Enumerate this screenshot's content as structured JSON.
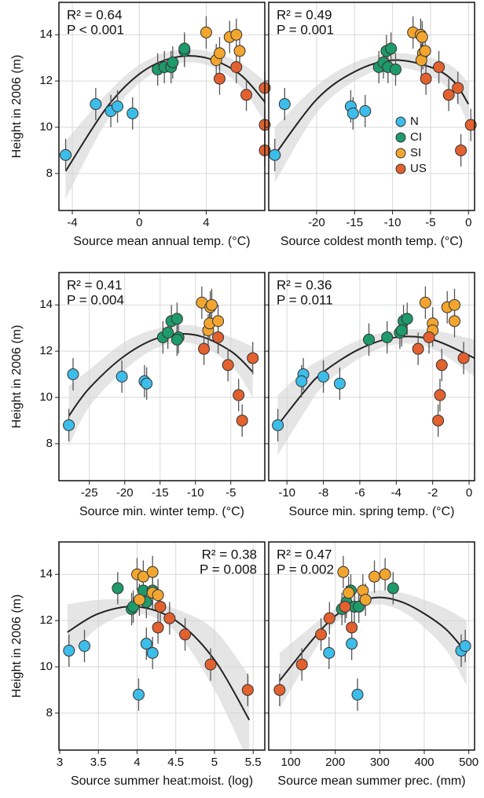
{
  "chart_data": [
    {
      "type": "scatter",
      "ylabel": "Height in 2006 (m)",
      "xlabel": "Source mean annual temp. (°C)",
      "annotations": [
        "R² = 0.64",
        "P < 0.001"
      ],
      "annotation_corner": "top-left",
      "xlim": [
        -4.8,
        7.5
      ],
      "xticks": [
        -4,
        0,
        4
      ],
      "ylim": [
        6.4,
        15.4
      ],
      "yticks": [
        8,
        10,
        12,
        14
      ],
      "show_ytick_labels": true,
      "grid": true,
      "series": [
        {
          "color": "#3dbde9",
          "x": [
            -4.4,
            -2.6,
            -1.7,
            -1.3,
            -0.4
          ],
          "values": [
            8.8,
            11.0,
            10.7,
            10.9,
            10.6
          ],
          "errors": [
            0.7,
            0.7,
            0.7,
            0.7,
            0.7
          ]
        },
        {
          "color": "#1e9a6b",
          "x": [
            1.1,
            1.5,
            1.9,
            2.0,
            2.7,
            2.7
          ],
          "values": [
            12.5,
            12.6,
            12.6,
            12.8,
            13.3,
            13.4
          ],
          "errors": [
            0.7,
            0.7,
            0.7,
            0.7,
            0.7,
            0.7
          ]
        },
        {
          "color": "#f2a62f",
          "x": [
            4.0,
            4.6,
            4.8,
            5.4,
            5.8,
            6.0
          ],
          "values": [
            14.1,
            12.9,
            13.2,
            13.9,
            14.0,
            13.3
          ],
          "errors": [
            0.7,
            0.7,
            0.7,
            0.7,
            0.7,
            0.7
          ]
        },
        {
          "color": "#e2612f",
          "x": [
            4.8,
            5.8,
            6.4,
            7.5,
            7.5,
            7.5
          ],
          "values": [
            12.1,
            12.6,
            11.4,
            11.7,
            10.1,
            9.0
          ],
          "errors": [
            0.7,
            0.7,
            0.7,
            0.7,
            0.7,
            0.7
          ]
        }
      ],
      "fit": {
        "x": [
          -4.4,
          -2,
          0,
          2,
          4,
          6,
          7.5
        ],
        "y": [
          8.1,
          10.8,
          12.3,
          13.0,
          13.0,
          12.3,
          11.1
        ],
        "lower": [
          6.9,
          10.2,
          11.9,
          12.7,
          12.7,
          11.8,
          10.2
        ],
        "upper": [
          9.4,
          11.4,
          12.7,
          13.3,
          13.3,
          12.8,
          12.0
        ]
      }
    },
    {
      "type": "scatter",
      "xlabel": "Source coldest month temp. (°C)",
      "annotations": [
        "R² = 0.49",
        "P = 0.001"
      ],
      "annotation_corner": "top-left",
      "xlim": [
        -26.3,
        0.8
      ],
      "xticks": [
        -20,
        -15,
        -10,
        -5,
        0
      ],
      "ylim": [
        6.4,
        15.4
      ],
      "yticks": [
        8,
        10,
        12,
        14
      ],
      "show_ytick_labels": false,
      "grid": true,
      "legend": "center-right",
      "series": [
        {
          "name": "N",
          "color": "#3dbde9",
          "x": [
            -25.5,
            -24.2,
            -15.5,
            -15.2,
            -13.6
          ],
          "values": [
            8.8,
            11.0,
            10.9,
            10.6,
            10.7
          ],
          "errors": [
            0.7,
            0.7,
            0.7,
            0.7,
            0.7
          ]
        },
        {
          "name": "CI",
          "color": "#1e9a6b",
          "x": [
            -11.8,
            -11.2,
            -10.8,
            -10.2,
            -10.6,
            -9.6
          ],
          "values": [
            12.6,
            12.8,
            13.3,
            13.4,
            12.6,
            12.5
          ],
          "errors": [
            0.7,
            0.7,
            0.7,
            0.7,
            0.7,
            0.7
          ]
        },
        {
          "name": "SI",
          "color": "#f2a62f",
          "x": [
            -7.3,
            -6.3,
            -6.1,
            -6.0,
            -6.2,
            -5.7
          ],
          "values": [
            14.1,
            14.0,
            13.9,
            13.2,
            12.9,
            13.3
          ],
          "errors": [
            0.7,
            0.7,
            0.7,
            0.7,
            0.7,
            0.7
          ]
        },
        {
          "name": "US",
          "color": "#e2612f",
          "x": [
            -5.6,
            -3.9,
            -2.6,
            -1.4,
            -1.0,
            0.3
          ],
          "values": [
            12.1,
            12.6,
            11.4,
            11.7,
            9.0,
            10.1
          ],
          "errors": [
            0.7,
            0.7,
            0.7,
            0.7,
            0.7,
            0.7
          ]
        }
      ],
      "fit": {
        "x": [
          -25.5,
          -20,
          -15,
          -10,
          -5,
          -2,
          0
        ],
        "y": [
          8.8,
          11.2,
          12.4,
          12.9,
          12.6,
          12.0,
          11.0
        ],
        "lower": [
          7.6,
          10.6,
          12.0,
          12.6,
          12.2,
          11.4,
          10.1
        ],
        "upper": [
          10.0,
          11.8,
          12.8,
          13.2,
          13.0,
          12.6,
          11.9
        ]
      }
    },
    {
      "type": "scatter",
      "ylabel": "Height in 2006 (m)",
      "xlabel": "Source min. winter temp. (°C)",
      "annotations": [
        "R² = 0.41",
        "P = 0.004"
      ],
      "annotation_corner": "top-left",
      "xlim": [
        -29.3,
        -0.2
      ],
      "xticks": [
        -25,
        -20,
        -15,
        -10,
        -5
      ],
      "ylim": [
        6.4,
        15.4
      ],
      "yticks": [
        8,
        10,
        12,
        14
      ],
      "show_ytick_labels": true,
      "grid": true,
      "series": [
        {
          "color": "#3dbde9",
          "x": [
            -27.9,
            -27.3,
            -20.4,
            -17.2,
            -16.9
          ],
          "values": [
            8.8,
            11.0,
            10.9,
            10.7,
            10.6
          ],
          "errors": [
            0.7,
            0.7,
            0.7,
            0.7,
            0.7
          ]
        },
        {
          "color": "#1e9a6b",
          "x": [
            -14.6,
            -13.9,
            -13.4,
            -12.6,
            -12.4,
            -12.6
          ],
          "values": [
            12.6,
            12.8,
            13.3,
            13.4,
            12.6,
            12.5
          ],
          "errors": [
            0.7,
            0.7,
            0.7,
            0.7,
            0.7,
            0.7
          ]
        },
        {
          "color": "#f2a62f",
          "x": [
            -9.1,
            -7.9,
            -7.7,
            -8.2,
            -8.0,
            -6.8
          ],
          "values": [
            14.1,
            13.9,
            14.0,
            12.9,
            13.2,
            13.3
          ],
          "errors": [
            0.7,
            0.7,
            0.7,
            0.7,
            0.7,
            0.7
          ]
        },
        {
          "color": "#e2612f",
          "x": [
            -8.8,
            -6.8,
            -5.4,
            -3.9,
            -3.4,
            -1.9
          ],
          "values": [
            12.1,
            12.6,
            11.4,
            10.1,
            9.0,
            11.7
          ],
          "errors": [
            0.7,
            0.7,
            0.7,
            0.7,
            0.7,
            0.7
          ]
        }
      ],
      "fit": {
        "x": [
          -27.9,
          -25,
          -20,
          -15,
          -10,
          -5,
          -1.9
        ],
        "y": [
          9.2,
          10.4,
          11.8,
          12.6,
          12.7,
          12.0,
          11.1
        ],
        "lower": [
          7.9,
          9.6,
          11.2,
          12.2,
          12.3,
          11.4,
          10.0
        ],
        "upper": [
          10.5,
          11.2,
          12.4,
          13.0,
          13.1,
          12.6,
          12.2
        ]
      }
    },
    {
      "type": "scatter",
      "xlabel": "Source min. spring temp. (°C)",
      "annotations": [
        "R² = 0.36",
        "P = 0.011"
      ],
      "annotation_corner": "top-left",
      "xlim": [
        -11.0,
        0.3
      ],
      "xticks": [
        -10,
        -8,
        -6,
        -4,
        -2,
        0
      ],
      "ylim": [
        6.4,
        15.4
      ],
      "yticks": [
        8,
        10,
        12,
        14
      ],
      "show_ytick_labels": false,
      "grid": true,
      "series": [
        {
          "color": "#3dbde9",
          "x": [
            -10.5,
            -9.1,
            -9.2,
            -8.0,
            -7.1
          ],
          "values": [
            8.8,
            11.0,
            10.7,
            10.9,
            10.6
          ],
          "errors": [
            0.7,
            0.7,
            0.7,
            0.7,
            0.7
          ]
        },
        {
          "color": "#1e9a6b",
          "x": [
            -5.5,
            -4.5,
            -3.8,
            -3.6,
            -3.4,
            -3.7
          ],
          "values": [
            12.5,
            12.6,
            12.8,
            13.3,
            13.4,
            12.9
          ],
          "errors": [
            0.7,
            0.7,
            0.7,
            0.7,
            0.7,
            0.7
          ]
        },
        {
          "color": "#f2a62f",
          "x": [
            -2.4,
            -2.0,
            -2.0,
            -1.2,
            -0.8,
            -0.8
          ],
          "values": [
            14.1,
            13.2,
            12.9,
            13.9,
            14.0,
            13.3
          ],
          "errors": [
            0.7,
            0.7,
            0.7,
            0.7,
            0.7,
            0.7
          ]
        },
        {
          "color": "#e2612f",
          "x": [
            -2.8,
            -2.2,
            -1.5,
            -1.6,
            -1.7,
            -0.3
          ],
          "values": [
            12.1,
            12.6,
            11.4,
            10.1,
            9.0,
            11.7
          ],
          "errors": [
            0.7,
            0.7,
            0.7,
            0.7,
            0.7,
            0.7
          ]
        }
      ],
      "fit": {
        "x": [
          -10.5,
          -9,
          -8,
          -6,
          -4,
          -2,
          0.3
        ],
        "y": [
          8.8,
          10.3,
          11.1,
          12.1,
          12.6,
          12.5,
          11.7
        ],
        "lower": [
          7.5,
          9.4,
          10.5,
          11.7,
          12.3,
          12.1,
          10.9
        ],
        "upper": [
          10.1,
          11.2,
          11.7,
          12.5,
          12.9,
          12.9,
          12.5
        ]
      }
    },
    {
      "type": "scatter",
      "ylabel": "Height in 2006 (m)",
      "xlabel": "Source summer heat:moist. (log)",
      "annotations": [
        "R² = 0.38",
        "P = 0.008"
      ],
      "annotation_corner": "top-right",
      "xlim": [
        2.99,
        5.65
      ],
      "xticks": [
        3,
        3.5,
        4,
        4.5,
        5,
        5.5
      ],
      "ylim": [
        6.4,
        15.4
      ],
      "yticks": [
        8,
        10,
        12,
        14
      ],
      "show_ytick_labels": true,
      "grid": true,
      "series": [
        {
          "color": "#3dbde9",
          "x": [
            3.12,
            3.32,
            4.02,
            4.12,
            4.2
          ],
          "values": [
            10.7,
            10.9,
            8.8,
            11.0,
            10.6
          ],
          "errors": [
            0.7,
            0.7,
            0.7,
            0.7,
            0.7
          ]
        },
        {
          "color": "#1e9a6b",
          "x": [
            3.75,
            3.93,
            3.95,
            4.08,
            4.12,
            4.2
          ],
          "values": [
            13.4,
            12.5,
            12.6,
            13.3,
            12.8,
            13.3
          ],
          "errors": [
            0.7,
            0.7,
            0.7,
            0.7,
            0.7,
            0.7
          ]
        },
        {
          "color": "#f2a62f",
          "x": [
            4.0,
            4.08,
            4.2,
            4.2,
            4.27,
            4.03
          ],
          "values": [
            14.0,
            13.9,
            14.1,
            13.2,
            13.1,
            12.9
          ],
          "errors": [
            0.7,
            0.7,
            0.7,
            0.7,
            0.7,
            0.7
          ]
        },
        {
          "color": "#e2612f",
          "x": [
            4.27,
            4.3,
            4.42,
            4.62,
            4.95,
            5.43
          ],
          "values": [
            11.7,
            12.6,
            12.1,
            11.4,
            10.1,
            9.0
          ],
          "errors": [
            0.7,
            0.7,
            0.7,
            0.7,
            0.7,
            0.7
          ]
        }
      ],
      "fit": {
        "x": [
          3.1,
          3.5,
          4,
          4.5,
          5,
          5.45
        ],
        "y": [
          11.5,
          12.3,
          12.6,
          12.0,
          10.3,
          7.7
        ],
        "lower": [
          10.3,
          11.7,
          12.3,
          11.5,
          9.0,
          5.8
        ],
        "upper": [
          12.7,
          12.9,
          12.9,
          12.5,
          11.6,
          9.6
        ]
      }
    },
    {
      "type": "scatter",
      "xlabel": "Source mean summer prec. (mm)",
      "annotations": [
        "R² = 0.47",
        "P = 0.002"
      ],
      "annotation_corner": "top-left",
      "xlim": [
        50.5,
        513
      ],
      "xticks": [
        100,
        200,
        300,
        400,
        500
      ],
      "ylim": [
        6.4,
        15.4
      ],
      "yticks": [
        8,
        10,
        12,
        14
      ],
      "show_ytick_labels": false,
      "grid": true,
      "series": [
        {
          "color": "#3dbde9",
          "x": [
            186,
            237,
            250,
            483,
            492
          ],
          "values": [
            10.6,
            11.0,
            8.8,
            10.7,
            10.9
          ],
          "errors": [
            0.7,
            0.7,
            0.7,
            0.7,
            0.7
          ]
        },
        {
          "color": "#1e9a6b",
          "x": [
            215,
            225,
            235,
            243,
            253,
            330
          ],
          "values": [
            12.5,
            12.8,
            13.3,
            12.6,
            12.6,
            13.4
          ],
          "errors": [
            0.7,
            0.7,
            0.7,
            0.7,
            0.7,
            0.7
          ]
        },
        {
          "color": "#f2a62f",
          "x": [
            218,
            230,
            262,
            268,
            288,
            312
          ],
          "values": [
            14.1,
            13.2,
            13.3,
            12.9,
            13.9,
            14.0
          ],
          "errors": [
            0.7,
            0.7,
            0.7,
            0.7,
            0.7,
            0.7
          ]
        },
        {
          "color": "#e2612f",
          "x": [
            75,
            125,
            168,
            187,
            222,
            237
          ],
          "values": [
            9.0,
            10.1,
            11.4,
            12.1,
            12.6,
            11.7
          ],
          "errors": [
            0.7,
            0.7,
            0.7,
            0.7,
            0.7,
            0.7
          ]
        }
      ],
      "fit": {
        "x": [
          75,
          150,
          200,
          250,
          300,
          350,
          400,
          450,
          495
        ],
        "y": [
          9.4,
          11.2,
          12.2,
          12.8,
          13.0,
          12.8,
          12.3,
          11.6,
          10.6
        ],
        "lower": [
          8.2,
          10.6,
          11.9,
          12.5,
          12.7,
          12.4,
          11.7,
          10.7,
          9.2
        ],
        "upper": [
          10.6,
          11.8,
          12.5,
          13.1,
          13.3,
          13.2,
          12.9,
          12.5,
          12.0
        ]
      }
    }
  ]
}
